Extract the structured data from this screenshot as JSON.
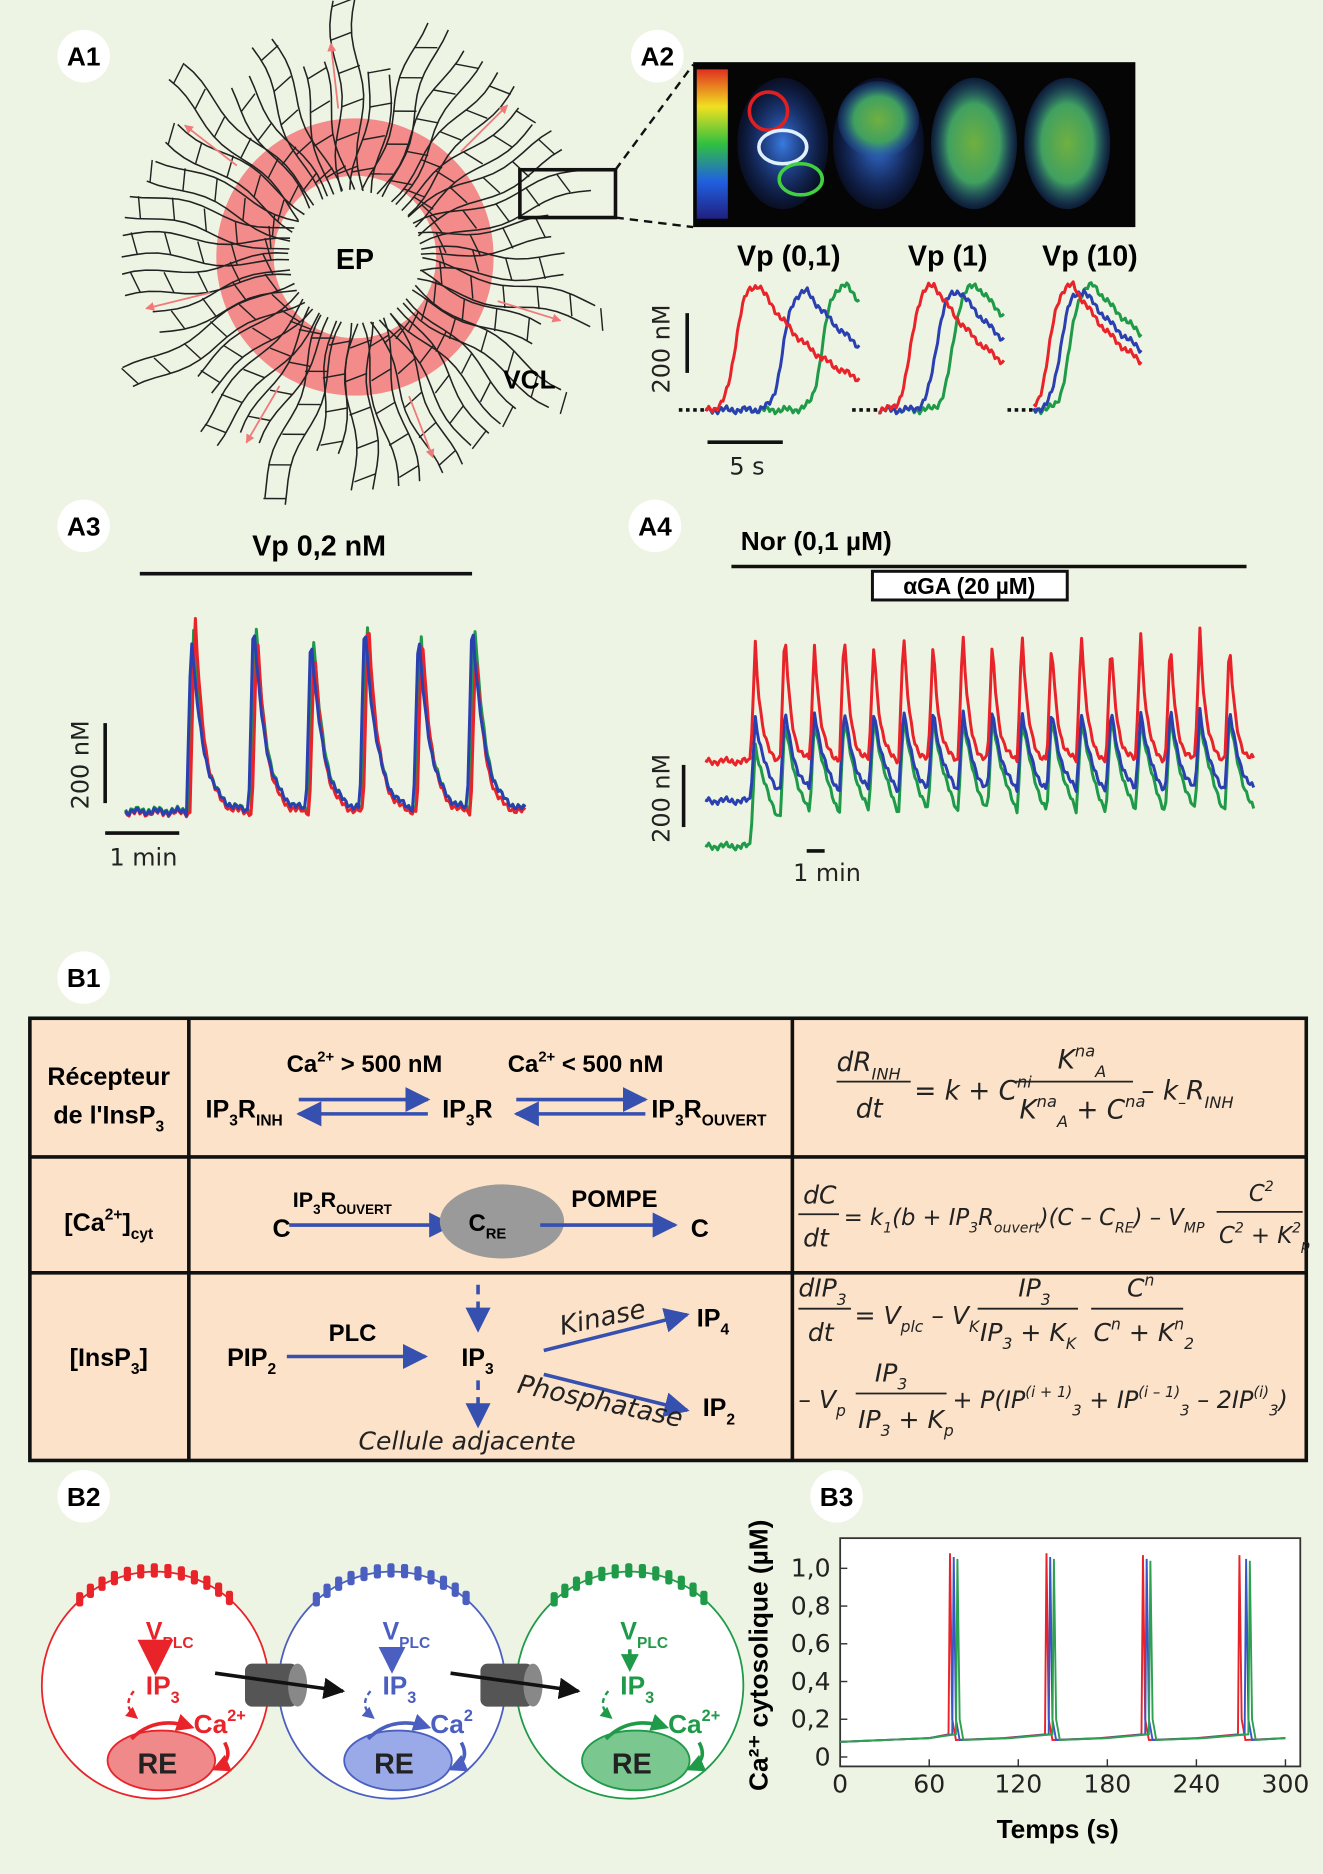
{
  "panels": {
    "a1": {
      "label": "A1",
      "center": "EP",
      "region": "VCL"
    },
    "a2": {
      "label": "A2",
      "conditions": [
        "Vp (0,1)",
        "Vp (1)",
        "Vp (10)"
      ],
      "scale_y": "200 nM",
      "scale_x": "5 s"
    },
    "a3": {
      "label": "A3",
      "stimulus": "Vp 0,2 nM",
      "scale_y": "200 nM",
      "scale_x": "1 min"
    },
    "a4": {
      "label": "A4",
      "stimulus": "Nor (0,1 µM)",
      "inhibitor": "αGA (20 µM)",
      "scale_y": "200 nM",
      "scale_x": "1 min"
    },
    "b1": {
      "label": "B1",
      "rows": [
        {
          "header": [
            [
              "Récepteur"
            ],
            [
              "de l'InsP",
              {
                "sub": "3"
              }
            ]
          ],
          "scheme": [
            [
              "Ca",
              {
                "sup": "2+"
              },
              " > 500 nM"
            ],
            [
              "Ca",
              {
                "sup": "2+"
              },
              " < 500 nM"
            ],
            [
              "IP",
              {
                "sub": "3"
              },
              "R",
              {
                "sub": "INH"
              }
            ],
            [
              "IP",
              {
                "sub": "3"
              },
              "R"
            ],
            [
              "IP",
              {
                "sub": "3"
              },
              "R",
              {
                "sub": "OUVERT"
              }
            ]
          ],
          "equation": [
            [
              "dR",
              {
                "sub": "INH"
              }
            ],
            [
              "dt"
            ],
            [
              "= k + C",
              {
                "sup": "ni"
              }
            ],
            [
              "K",
              {
                "sup": "na"
              },
              {
                "sub": "A"
              }
            ],
            [
              "K",
              {
                "sup": "na"
              },
              {
                "sub": "A"
              },
              " + C",
              {
                "sup": "na"
              }
            ],
            [
              "– k",
              {
                "sub": "–"
              },
              "R",
              {
                "sub": "INH"
              }
            ]
          ]
        },
        {
          "header": [
            [
              "[Ca",
              {
                "sup": "2+"
              },
              "]",
              {
                "sub": "cyt"
              }
            ]
          ],
          "scheme": [
            [
              "C"
            ],
            [
              "IP",
              {
                "sub": "3"
              },
              "R",
              {
                "sub": "OUVERT"
              }
            ],
            [
              "C",
              {
                "sub": "RE"
              }
            ],
            [
              "POMPE"
            ],
            [
              "C"
            ]
          ],
          "equation": [
            [
              "dC"
            ],
            [
              "dt"
            ],
            [
              "= k",
              {
                "sub": "1"
              },
              "(b + IP",
              {
                "sub": "3"
              },
              "R",
              {
                "sub": "ouvert"
              },
              ")(C – C",
              {
                "sub": "RE"
              },
              ") – V",
              {
                "sub": "MP"
              }
            ],
            [
              "C",
              {
                "sup": "2"
              }
            ],
            [
              "C",
              {
                "sup": "2"
              },
              " + K",
              {
                "sup": "2"
              },
              {
                "sub": "p"
              }
            ]
          ]
        },
        {
          "header": [
            [
              "[InsP",
              {
                "sub": "3"
              },
              "]"
            ]
          ],
          "scheme": [
            [
              "PIP",
              {
                "sub": "2"
              }
            ],
            [
              "PLC"
            ],
            [
              "IP",
              {
                "sub": "3"
              }
            ],
            [
              "Kinase"
            ],
            [
              "IP",
              {
                "sub": "4"
              }
            ],
            [
              "Phosphatase"
            ],
            [
              "IP",
              {
                "sub": "2"
              }
            ],
            [
              "Cellule adjacente"
            ]
          ],
          "equation": [
            [
              "dIP",
              {
                "sub": "3"
              }
            ],
            [
              "dt"
            ],
            [
              "= V",
              {
                "sub": "plc"
              },
              " – V",
              {
                "sub": "K"
              }
            ],
            [
              "IP",
              {
                "sub": "3"
              }
            ],
            [
              "IP",
              {
                "sub": "3"
              },
              " + K",
              {
                "sub": "K"
              }
            ],
            [
              "C",
              {
                "sup": "n"
              }
            ],
            [
              "C",
              {
                "sup": "n"
              },
              " + K",
              {
                "sup": "n"
              },
              {
                "sub": "2"
              }
            ],
            [
              "– V",
              {
                "sub": "p"
              }
            ],
            [
              "IP",
              {
                "sub": "3"
              }
            ],
            [
              "IP",
              {
                "sub": "3"
              },
              " + K",
              {
                "sub": "p"
              }
            ],
            [
              "+ P(IP",
              {
                "sup": "(i + 1)"
              },
              {
                "sub": "3"
              },
              " + IP",
              {
                "sup": "(i – 1)"
              },
              {
                "sub": "3"
              },
              " – 2IP",
              {
                "sup": "(i)"
              },
              {
                "sub": "3"
              },
              ")"
            ]
          ]
        }
      ]
    },
    "b2": {
      "label": "B2",
      "cells": [
        {
          "enzyme": [
            "V",
            {
              "sub": "PLC"
            }
          ],
          "messenger": [
            "IP",
            {
              "sub": "3"
            }
          ],
          "ion": [
            "Ca",
            {
              "sup": "2+"
            }
          ],
          "store": [
            "RE"
          ]
        },
        {
          "enzyme": [
            "V",
            {
              "sub": "PLC"
            }
          ],
          "messenger": [
            "IP",
            {
              "sub": "3"
            }
          ],
          "ion": [
            "Ca",
            {
              "sup": "2"
            }
          ],
          "store": [
            "RE"
          ]
        },
        {
          "enzyme": [
            "V",
            {
              "sub": "PLC"
            }
          ],
          "messenger": [
            "IP",
            {
              "sub": "3"
            }
          ],
          "ion": [
            "Ca",
            {
              "sup": "2+"
            }
          ],
          "store": [
            "RE"
          ]
        }
      ]
    },
    "b3": {
      "label": "B3"
    }
  },
  "chart_data": {
    "type": "line",
    "x_label": "Temps (s)",
    "y_label": "Ca²⁺ cytosolique (µM)",
    "xlim": [
      0,
      310
    ],
    "ylim": [
      -0.05,
      1.16
    ],
    "xticks": [
      0,
      60,
      120,
      180,
      240,
      300
    ],
    "yticks": [
      0,
      {
        "value": 0.2,
        "label": "0,2"
      },
      {
        "value": 0.4,
        "label": "0,4"
      },
      {
        "value": 0.6,
        "label": "0,6"
      },
      {
        "value": 0.8,
        "label": "0,8"
      },
      {
        "value": 1,
        "label": "1,0"
      }
    ],
    "series": [
      {
        "color": "#e8242a",
        "x": [
          0,
          30,
          60,
          73,
          74,
          75.5,
          78,
          110,
          138,
          139,
          140.5,
          143,
          175,
          203,
          204,
          205.5,
          208,
          240,
          268,
          269,
          270.5,
          273,
          300
        ],
        "values": [
          0.08,
          0.09,
          0.1,
          0.12,
          1.08,
          0.2,
          0.09,
          0.1,
          0.12,
          1.08,
          0.2,
          0.09,
          0.1,
          0.12,
          1.07,
          0.2,
          0.09,
          0.1,
          0.12,
          1.07,
          0.2,
          0.09,
          0.1
        ]
      },
      {
        "color": "#3a55c8",
        "x": [
          0,
          30,
          60,
          75.5,
          76.5,
          78,
          80.5,
          112.5,
          140.5,
          141.5,
          143,
          145.5,
          177.5,
          205.5,
          206.5,
          208,
          210.5,
          242.5,
          272.5,
          273.5,
          275,
          277.5,
          300
        ],
        "values": [
          0.08,
          0.09,
          0.1,
          0.12,
          1.06,
          0.2,
          0.09,
          0.1,
          0.12,
          1.06,
          0.2,
          0.09,
          0.1,
          0.12,
          1.05,
          0.2,
          0.09,
          0.1,
          0.12,
          1.05,
          0.2,
          0.09,
          0.1
        ]
      },
      {
        "color": "#2fa050",
        "x": [
          0,
          30,
          60,
          78,
          79,
          80.5,
          83,
          115,
          143,
          144,
          145.5,
          148,
          180,
          208,
          209,
          210.5,
          213,
          245,
          275,
          276,
          277.5,
          280,
          300
        ],
        "values": [
          0.08,
          0.09,
          0.1,
          0.12,
          1.05,
          0.2,
          0.09,
          0.1,
          0.12,
          1.05,
          0.2,
          0.09,
          0.1,
          0.12,
          1.04,
          0.2,
          0.09,
          0.1,
          0.12,
          1.04,
          0.2,
          0.09,
          0.1
        ]
      }
    ]
  }
}
